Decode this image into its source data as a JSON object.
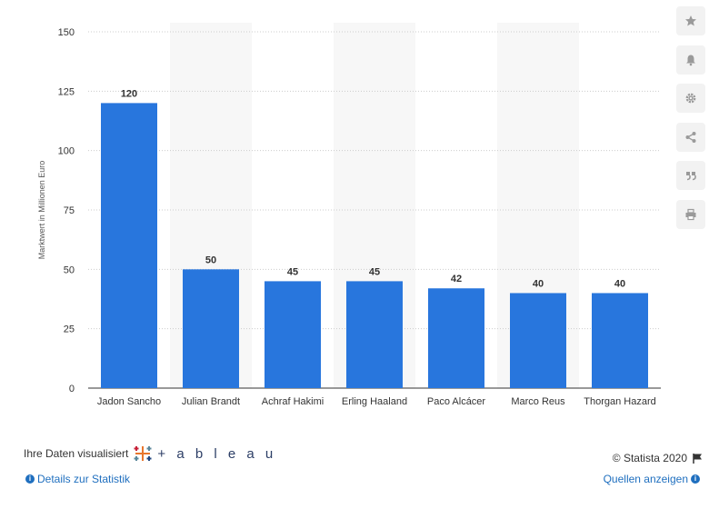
{
  "chart_data": {
    "type": "bar",
    "categories": [
      "Jadon Sancho",
      "Julian Brandt",
      "Achraf Hakimi",
      "Erling Haaland",
      "Paco Alcácer",
      "Marco Reus",
      "Thorgan Hazard"
    ],
    "values": [
      120,
      50,
      45,
      45,
      42,
      40,
      40
    ],
    "ylabel": "Marktwert in Millionen Euro",
    "xlabel": "",
    "ylim": [
      0,
      150
    ],
    "yticks": [
      0,
      25,
      50,
      75,
      100,
      125,
      150
    ],
    "grid": true,
    "bar_color": "#2876dd",
    "alt_band_color": "#f7f7f7"
  },
  "toolbar": {
    "icons": [
      "star-icon",
      "bell-icon",
      "gear-icon",
      "share-icon",
      "quote-icon",
      "print-icon"
    ]
  },
  "footer": {
    "visualized_text": "Ihre Daten visualisiert",
    "tableau_word": "+ a b l e a u",
    "copyright": "© Statista 2020",
    "details_link": "Details zur Statistik",
    "sources_link": "Quellen anzeigen"
  },
  "colors": {
    "link": "#1f6fbf",
    "text": "#333333",
    "grid": "#cccccc"
  }
}
